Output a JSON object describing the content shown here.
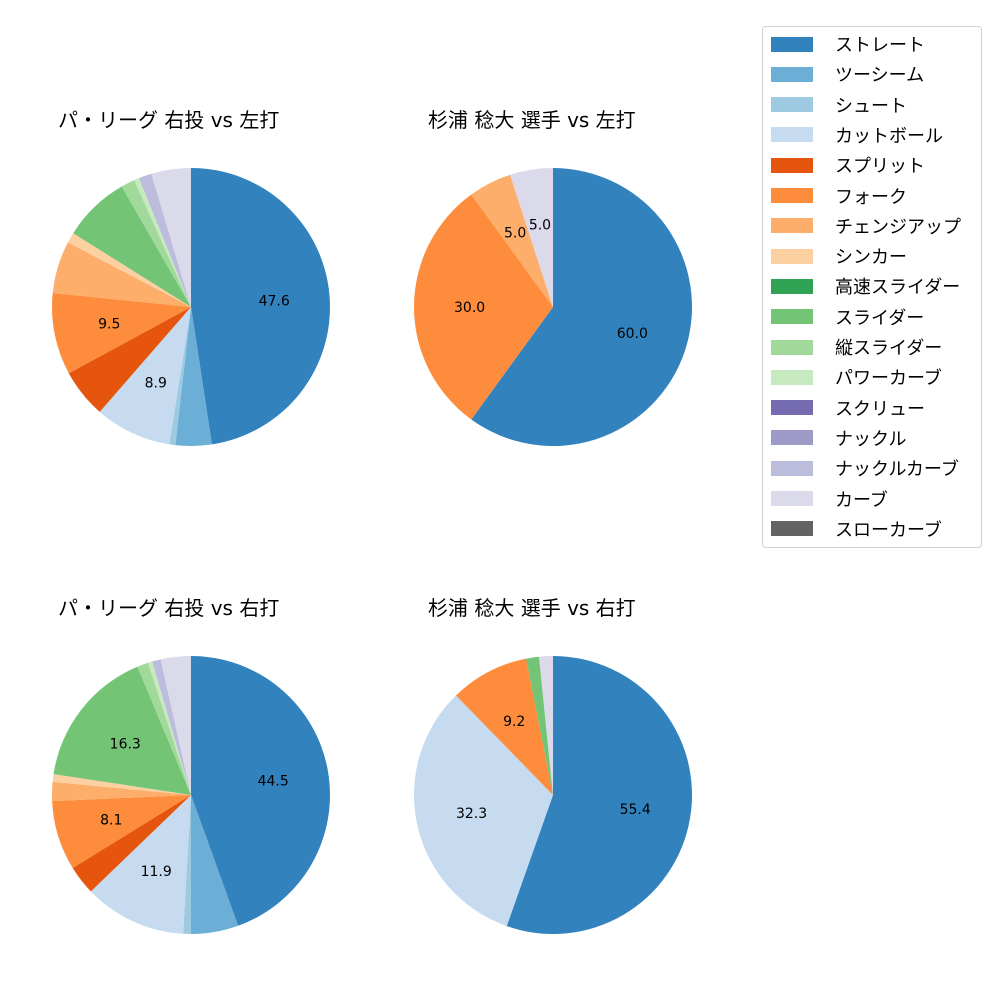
{
  "chart_data": [
    {
      "type": "pie",
      "title": "パ・リーグ 右投 vs 左打",
      "categories": [
        "ストレート",
        "ツーシーム",
        "シュート",
        "カットボール",
        "スプリット",
        "フォーク",
        "チェンジアップ",
        "シンカー",
        "スライダー",
        "縦スライダー",
        "パワーカーブ",
        "ナックルカーブ",
        "カーブ"
      ],
      "values": [
        47.6,
        4.2,
        0.7,
        8.9,
        5.7,
        9.5,
        6.1,
        1.2,
        7.8,
        1.6,
        0.6,
        1.5,
        4.6
      ],
      "labels_shown": {
        "ストレート": "47.6",
        "カットボール": "8.9",
        "フォーク": "9.5"
      }
    },
    {
      "type": "pie",
      "title": "杉浦 稔大 選手 vs 左打",
      "categories": [
        "ストレート",
        "フォーク",
        "チェンジアップ",
        "カーブ"
      ],
      "values": [
        60.0,
        30.0,
        5.0,
        5.0
      ],
      "labels_shown": {
        "ストレート": "60.0",
        "フォーク": "30.0",
        "チェンジアップ": "5.0",
        "カーブ": "5.0"
      }
    },
    {
      "type": "pie",
      "title": "パ・リーグ 右投 vs 右打",
      "categories": [
        "ストレート",
        "ツーシーム",
        "シュート",
        "カットボール",
        "スプリット",
        "フォーク",
        "チェンジアップ",
        "シンカー",
        "スライダー",
        "縦スライダー",
        "パワーカーブ",
        "ナックルカーブ",
        "カーブ"
      ],
      "values": [
        44.5,
        5.5,
        0.9,
        11.9,
        3.4,
        8.1,
        2.2,
        0.9,
        16.3,
        1.3,
        0.5,
        1.0,
        3.5
      ],
      "labels_shown": {
        "ストレート": "44.5",
        "カットボール": "11.9",
        "フォーク": "8.1",
        "スライダー": "16.3"
      }
    },
    {
      "type": "pie",
      "title": "杉浦 稔大 選手 vs 右打",
      "categories": [
        "ストレート",
        "カットボール",
        "フォーク",
        "スライダー",
        "カーブ"
      ],
      "values": [
        55.4,
        32.3,
        9.2,
        1.5,
        1.6
      ],
      "labels_shown": {
        "ストレート": "55.4",
        "カットボール": "32.3",
        "フォーク": "9.2"
      }
    }
  ],
  "legend": {
    "items": [
      {
        "label": "ストレート",
        "color": "#3182bd"
      },
      {
        "label": "ツーシーム",
        "color": "#6baed6"
      },
      {
        "label": "シュート",
        "color": "#9ecae1"
      },
      {
        "label": "カットボール",
        "color": "#c6dbef"
      },
      {
        "label": "スプリット",
        "color": "#e6550d"
      },
      {
        "label": "フォーク",
        "color": "#fd8d3c"
      },
      {
        "label": "チェンジアップ",
        "color": "#fdae6b"
      },
      {
        "label": "シンカー",
        "color": "#fdd0a2"
      },
      {
        "label": "高速スライダー",
        "color": "#31a354"
      },
      {
        "label": "スライダー",
        "color": "#74c476"
      },
      {
        "label": "縦スライダー",
        "color": "#a1d99b"
      },
      {
        "label": "パワーカーブ",
        "color": "#c7e9c0"
      },
      {
        "label": "スクリュー",
        "color": "#756bb1"
      },
      {
        "label": "ナックル",
        "color": "#9e9ac8"
      },
      {
        "label": "ナックルカーブ",
        "color": "#bcbddc"
      },
      {
        "label": "カーブ",
        "color": "#dadaeb"
      },
      {
        "label": "スローカーブ",
        "color": "#636363"
      }
    ]
  }
}
